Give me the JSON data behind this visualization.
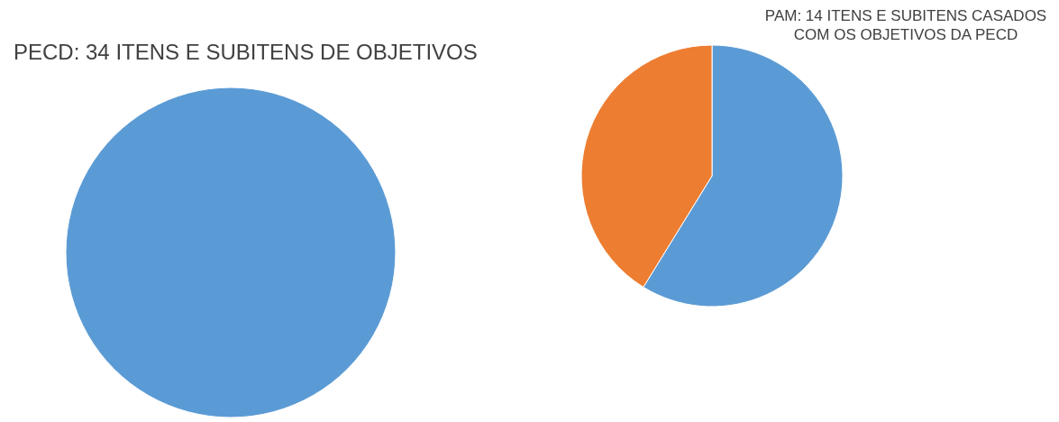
{
  "chart_data": [
    {
      "type": "pie",
      "title": "PECD: 34 ITENS E SUBITENS DE OBJETIVOS",
      "categories": [
        null
      ],
      "values": [
        100
      ],
      "colors": [
        "#5b9bd5"
      ]
    },
    {
      "type": "pie",
      "title": "PAM: 14 ITENS E SUBITENS CASADOS\nCOM OS OBJETIVOS DA PECD",
      "categories": [
        null,
        null
      ],
      "values": [
        58.8,
        41.2
      ],
      "colors": [
        "#5b9bd5",
        "#ed7d31"
      ]
    }
  ]
}
